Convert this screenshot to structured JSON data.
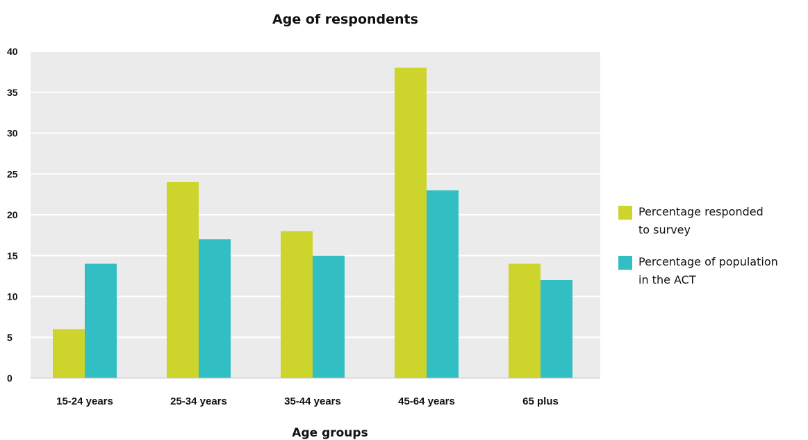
{
  "chart_data": {
    "type": "bar",
    "title": "Age of respondents",
    "xlabel": "Age groups",
    "ylabel": "",
    "ylim": [
      0,
      40
    ],
    "yticks": [
      0,
      5,
      10,
      15,
      20,
      25,
      30,
      35,
      40
    ],
    "grid": true,
    "legend_position": "right",
    "categories": [
      "15-24 years",
      "25-34 years",
      "35-44 years",
      "45-64 years",
      "65 plus"
    ],
    "series": [
      {
        "name": "Percentage responded to survey",
        "legend_lines": [
          "Percentage responded",
          "to survey"
        ],
        "color": "#cdd42b",
        "values": [
          6,
          24,
          18,
          38,
          14
        ]
      },
      {
        "name": "Percentage of population in the ACT",
        "legend_lines": [
          "Percentage of population",
          "in the ACT"
        ],
        "color": "#32bfc3",
        "values": [
          14,
          17,
          15,
          23,
          12
        ]
      }
    ],
    "plot_background": "#ebebeb",
    "gridline_color": "#ffffff"
  }
}
